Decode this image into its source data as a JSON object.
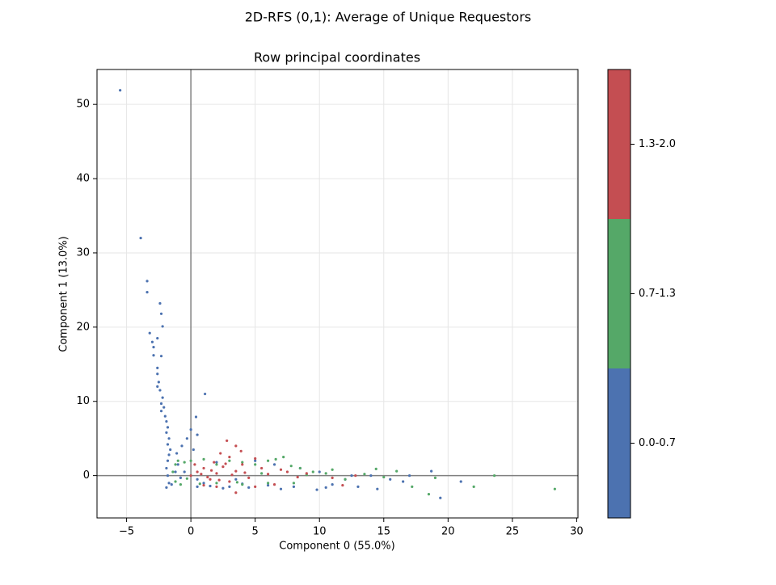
{
  "chart_data": {
    "type": "scatter",
    "title": "2D-RFS (0,1): Average of Unique Requestors",
    "subtitle": "Row principal coordinates",
    "x_label": "Component 0 (55.0%)",
    "y_label": "Component 1 (13.0%)",
    "xlim": [
      -7.3,
      30.1
    ],
    "ylim": [
      -5.7,
      54.7
    ],
    "xticks": [
      {
        "value": -5,
        "label": "−5"
      },
      0,
      5,
      10,
      15,
      20,
      25,
      30
    ],
    "yticks": [
      0,
      10,
      20,
      30,
      40,
      50
    ],
    "grid": true,
    "zero_lines": true,
    "legend": "colorbar-right",
    "series": [
      {
        "name": "0.0-0.7",
        "color": "#4c72b0",
        "x": [
          -5.5,
          -3.9,
          -3.4,
          -3.4,
          -2.4,
          -2.3,
          -2.2,
          -3.2,
          -3.0,
          -2.6,
          -2.9,
          -2.9,
          -2.3,
          -2.6,
          -2.6,
          -2.5,
          -2.6,
          -2.4,
          -2.2,
          -2.3,
          -2.1,
          -2.3,
          -2.0,
          -1.9,
          -1.8,
          -1.9,
          -1.7,
          -1.8,
          -1.6,
          -1.7,
          -1.8,
          -1.9,
          -1.8,
          -1.7,
          -1.9,
          1.1,
          0.4,
          0.5,
          0.0,
          -0.3,
          -0.7,
          -1.1,
          0.2,
          -1.0,
          0.5,
          1.5,
          3.0,
          4.5,
          6.0,
          7.0,
          8.0,
          9.8,
          10.5,
          11.0,
          12.0,
          13.0,
          14.0,
          14.5,
          15.5,
          16.5,
          18.7,
          19.4,
          21.0,
          17.0,
          10.0,
          8.5,
          6.5,
          5.0,
          2.0,
          0.5,
          -0.5,
          3.5,
          12.5,
          -1.5,
          -1.2,
          -0.8,
          1.0,
          2.5,
          4.0
        ],
        "y": [
          51.9,
          32.0,
          26.2,
          24.7,
          23.2,
          21.8,
          20.1,
          19.2,
          18.0,
          18.5,
          17.3,
          16.2,
          16.1,
          14.5,
          13.7,
          12.6,
          12.0,
          11.5,
          10.5,
          9.7,
          9.2,
          8.7,
          8.0,
          7.3,
          6.5,
          5.8,
          5.0,
          4.2,
          3.5,
          2.8,
          2.0,
          1.0,
          0.0,
          -1.0,
          -1.6,
          11.0,
          7.9,
          5.5,
          6.2,
          5.0,
          4.0,
          3.0,
          3.5,
          1.5,
          -1.5,
          -1.4,
          -1.5,
          -1.6,
          -1.3,
          -1.8,
          -1.5,
          -1.9,
          -1.6,
          -1.2,
          -0.5,
          -1.5,
          0.0,
          -1.8,
          -0.5,
          -0.8,
          0.6,
          -3.0,
          -0.8,
          0.0,
          0.5,
          1.0,
          1.5,
          2.0,
          1.8,
          -0.5,
          0.5,
          -0.5,
          0.0,
          -1.2,
          0.5,
          -0.3,
          -1.0,
          -1.7,
          -1.1
        ]
      },
      {
        "name": "0.7-1.3",
        "color": "#55a868",
        "x": [
          -1.2,
          -1.0,
          -0.5,
          -1.2,
          -0.8,
          0.0,
          1.0,
          2.0,
          3.0,
          4.0,
          5.0,
          6.0,
          6.6,
          7.2,
          7.8,
          8.5,
          9.5,
          10.5,
          11.0,
          12.0,
          13.5,
          14.4,
          16.0,
          17.2,
          18.5,
          22.0,
          23.6,
          28.3,
          19.0,
          15.0,
          8.0,
          6.0,
          4.0,
          2.0,
          5.5,
          9.0,
          -1.4,
          -0.3,
          0.7,
          3.6
        ],
        "y": [
          1.5,
          2.0,
          1.8,
          -0.8,
          -1.2,
          2.0,
          2.2,
          1.5,
          2.0,
          1.8,
          1.5,
          2.0,
          2.2,
          2.5,
          1.3,
          1.0,
          0.5,
          0.3,
          0.8,
          -0.5,
          0.2,
          0.9,
          0.6,
          -1.5,
          -2.5,
          -1.5,
          0.0,
          -1.8,
          -0.3,
          -0.2,
          -1.0,
          -1.0,
          -1.2,
          -1.0,
          0.3,
          0.1,
          0.5,
          -0.4,
          -1.1,
          -0.9
        ]
      },
      {
        "name": "1.3-2.0",
        "color": "#c44e52",
        "x": [
          0.0,
          0.5,
          1.0,
          1.5,
          2.0,
          2.5,
          3.0,
          3.5,
          4.0,
          4.5,
          2.8,
          3.5,
          3.9,
          2.3,
          3.0,
          5.0,
          5.5,
          6.0,
          6.5,
          7.0,
          7.5,
          8.3,
          9.0,
          11.8,
          12.8,
          11.0,
          1.0,
          0.3,
          1.8,
          5.0,
          3.5,
          2.0,
          0.8,
          1.3,
          2.2,
          3.2,
          4.2,
          1.6,
          2.7
        ],
        "y": [
          0.0,
          0.5,
          1.0,
          -0.5,
          0.3,
          1.2,
          -0.8,
          0.6,
          1.5,
          -0.3,
          4.7,
          4.0,
          3.3,
          3.0,
          2.5,
          2.3,
          1.0,
          0.2,
          -1.2,
          0.8,
          0.5,
          -0.2,
          0.3,
          -1.3,
          0.0,
          -0.3,
          -1.3,
          1.5,
          1.8,
          -1.5,
          -2.3,
          -1.5,
          0.2,
          -0.2,
          -0.6,
          0.1,
          0.4,
          0.7,
          1.6
        ]
      }
    ]
  }
}
